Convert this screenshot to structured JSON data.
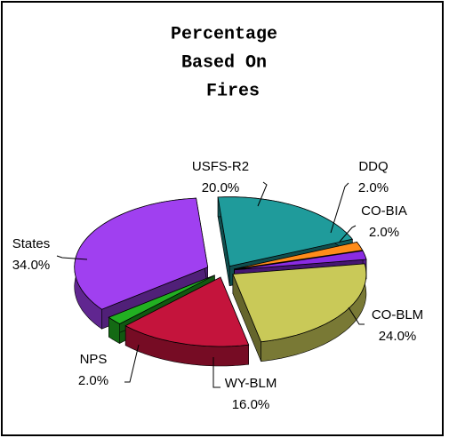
{
  "chart_data": {
    "type": "pie",
    "title": [
      "Percentage",
      "Based On",
      "Fires"
    ],
    "categories": [
      "USFS-R2",
      "DDQ",
      "CO-BIA",
      "CO-BLM",
      "WY-BLM",
      "NPS",
      "States"
    ],
    "values": [
      20,
      2,
      2,
      24,
      16,
      2,
      34
    ],
    "value_labels": [
      "20.0%",
      "2.0%",
      "2.0%",
      "24.0%",
      "16.0%",
      "2.0%",
      "34.0%"
    ],
    "colors": [
      "#1f9b9b",
      "#ff8c1a",
      "#8a2be2",
      "#c9c958",
      "#c4143c",
      "#22b022",
      "#a040f0"
    ]
  }
}
